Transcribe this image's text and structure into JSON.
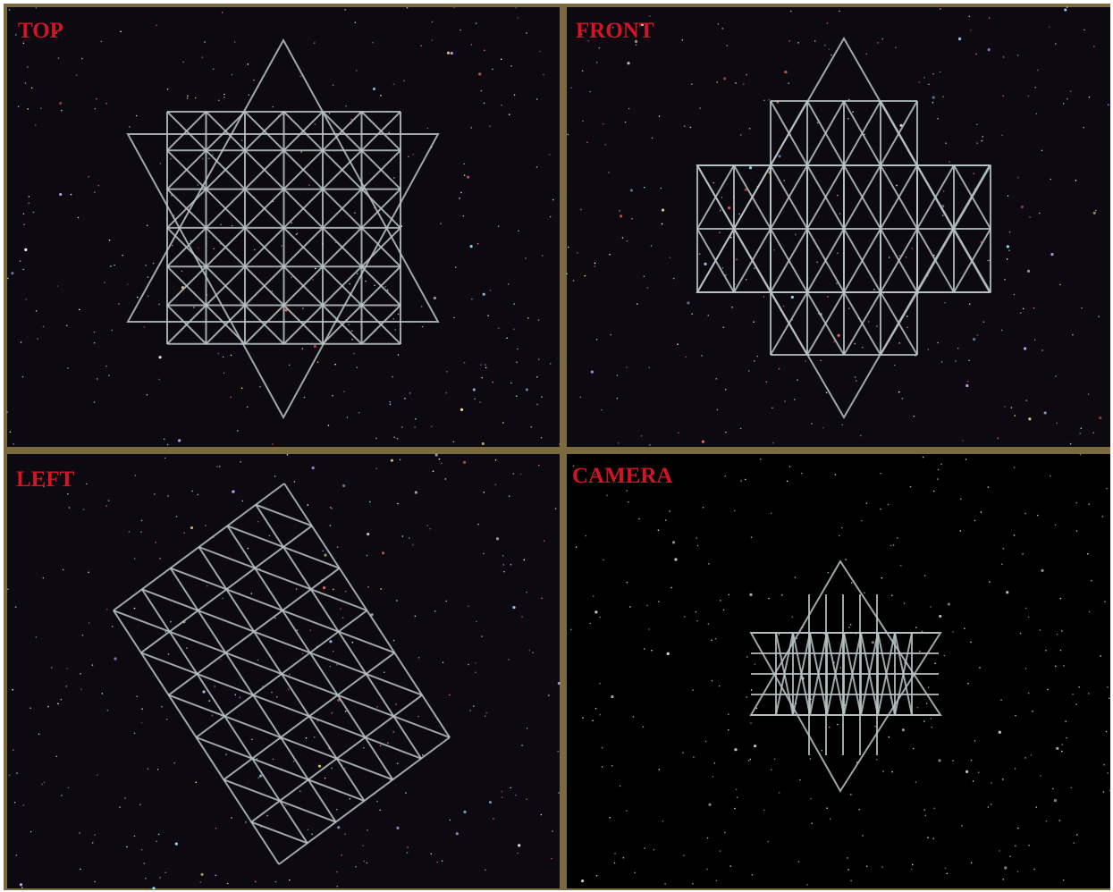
{
  "viewports": [
    {
      "label": "TOP"
    },
    {
      "label": "FRONT"
    },
    {
      "label": "LEFT"
    },
    {
      "label": "CAMERA"
    }
  ]
}
